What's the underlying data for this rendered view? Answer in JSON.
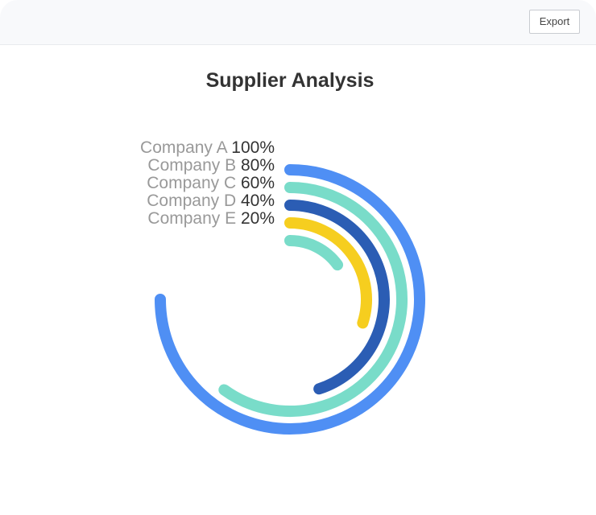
{
  "toolbar": {
    "export_label": "Export"
  },
  "chart_data": {
    "type": "radial-bar",
    "title": "Supplier Analysis",
    "categories": [
      "Company A",
      "Company B",
      "Company C",
      "Company D",
      "Company E"
    ],
    "values": [
      100,
      80,
      60,
      40,
      20
    ],
    "value_labels": [
      "100%",
      "80%",
      "60%",
      "40%",
      "20%"
    ],
    "max": 100,
    "colors": [
      "#4f8ff4",
      "#79dcc9",
      "#2b5db4",
      "#f6ce1f",
      "#79dcc9"
    ]
  }
}
